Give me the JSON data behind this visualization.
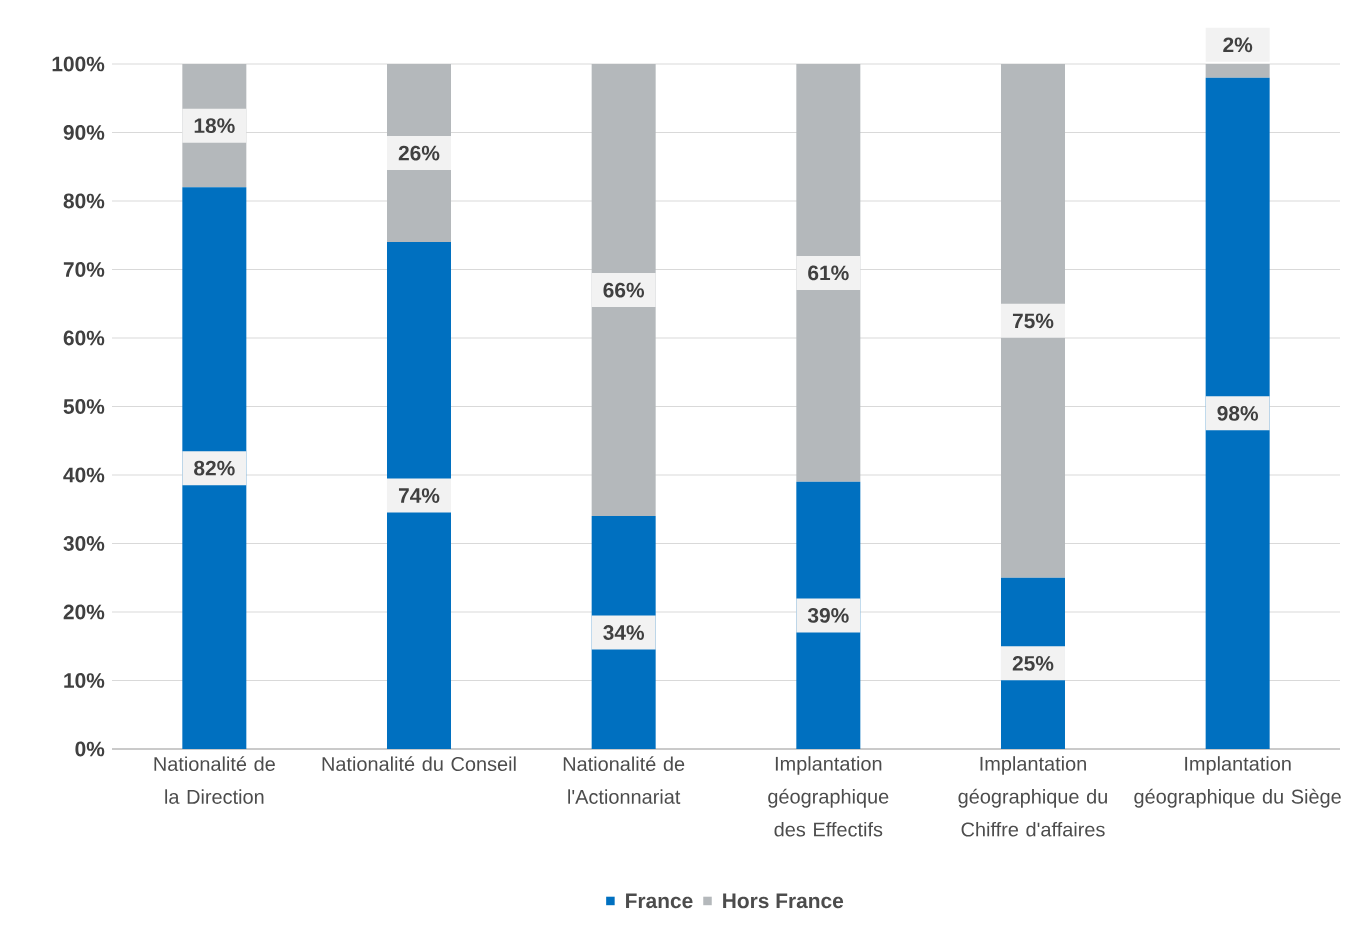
{
  "chart_data": {
    "type": "bar",
    "stacked": true,
    "categories": [
      "Nationalité de la Direction",
      "Nationalité du Conseil",
      "Nationalité de l'Actionnariat",
      "Implantation géographique des Effectifs",
      "Implantation géographique du Chiffre d'affaires",
      "Implantation géographique du Siège"
    ],
    "series": [
      {
        "name": "France",
        "color": "#0070c0",
        "values": [
          82,
          74,
          34,
          39,
          25,
          98
        ],
        "value_labels": [
          "82%",
          "74%",
          "34%",
          "39%",
          "25%",
          "98%"
        ]
      },
      {
        "name": "Hors France",
        "color": "#b4b8bb",
        "values": [
          18,
          26,
          66,
          61,
          75,
          2
        ],
        "value_labels": [
          "18%",
          "26%",
          "66%",
          "61%",
          "75%",
          "2%"
        ]
      }
    ],
    "ylim": [
      0,
      100
    ],
    "yticks": [
      {
        "value": 0,
        "label": "0%"
      },
      {
        "value": 10,
        "label": "10%"
      },
      {
        "value": 20,
        "label": "20%"
      },
      {
        "value": 30,
        "label": "30%"
      },
      {
        "value": 40,
        "label": "40%"
      },
      {
        "value": 50,
        "label": "50%"
      },
      {
        "value": 60,
        "label": "60%"
      },
      {
        "value": 70,
        "label": "70%"
      },
      {
        "value": 80,
        "label": "80%"
      },
      {
        "value": 90,
        "label": "90%"
      },
      {
        "value": 100,
        "label": "100%"
      }
    ],
    "grid": "y",
    "legend": "bottom"
  }
}
